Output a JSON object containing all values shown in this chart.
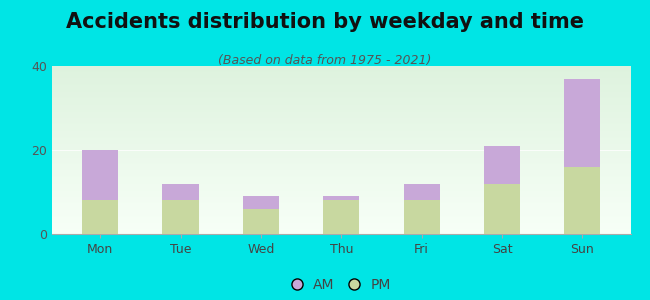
{
  "title": "Accidents distribution by weekday and time",
  "subtitle": "(Based on data from 1975 - 2021)",
  "categories": [
    "Mon",
    "Tue",
    "Wed",
    "Thu",
    "Fri",
    "Sat",
    "Sun"
  ],
  "pm_values": [
    8,
    8,
    6,
    8,
    8,
    12,
    16
  ],
  "am_values": [
    12,
    4,
    3,
    1,
    4,
    9,
    21
  ],
  "am_color": "#c8a8d8",
  "pm_color": "#c8d8a0",
  "background_color": "#00e5e5",
  "ylim": [
    0,
    40
  ],
  "yticks": [
    0,
    20,
    40
  ],
  "bar_width": 0.45,
  "title_fontsize": 15,
  "subtitle_fontsize": 9,
  "tick_fontsize": 9,
  "legend_fontsize": 10
}
